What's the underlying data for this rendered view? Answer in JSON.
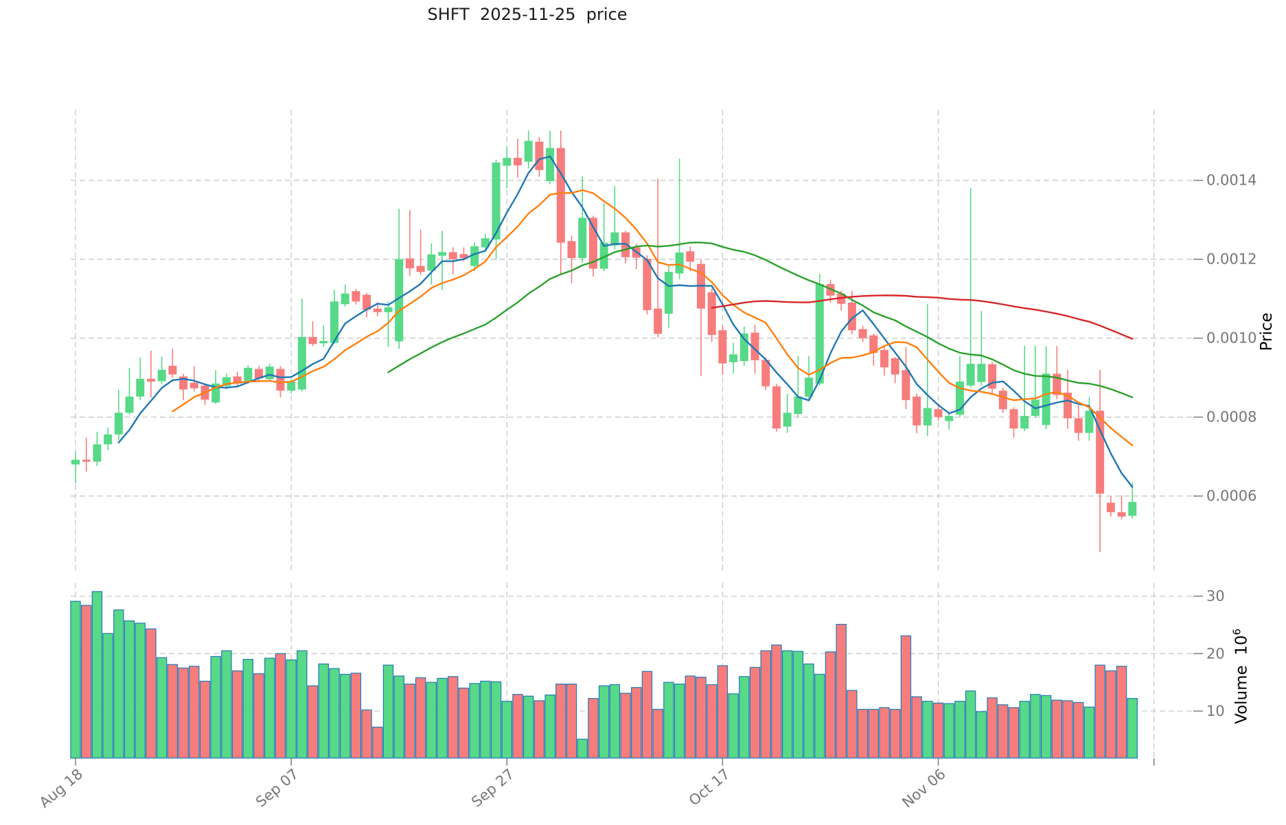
{
  "title": "SHFT  2025-11-25  price",
  "right_axis": {
    "price_label": "Price",
    "volume_label": "Volume",
    "volume_unit_base": "10",
    "volume_unit_exp": "6"
  },
  "chart_data": {
    "type": "candlestick",
    "title": "SHFT  2025-11-25  price",
    "x_tick_labels": [
      "Aug 18",
      "Sep 07",
      "Sep 27",
      "Oct 17",
      "Nov 06"
    ],
    "x_tick_candle_indices": [
      0,
      20,
      40,
      60,
      80
    ],
    "x_gridline_indices": [
      0,
      20,
      40,
      60,
      80,
      100
    ],
    "price_axis_ticks": [
      {
        "label": "0.0006",
        "value": 0.0006
      },
      {
        "label": "0.0008",
        "value": 0.0008
      },
      {
        "label": "0.0010",
        "value": 0.001
      },
      {
        "label": "0.0012",
        "value": 0.0012
      },
      {
        "label": "0.0014",
        "value": 0.0014
      }
    ],
    "volume_axis_ticks": [
      {
        "label": "10",
        "value": 10
      },
      {
        "label": "20",
        "value": 20
      },
      {
        "label": "30",
        "value": 30
      }
    ],
    "price_ylim": [
      0.000405,
      0.001579
    ],
    "volume_ylim_millions": [
      1.75,
      32.3
    ],
    "grid": true,
    "legend_position": "none",
    "ohlc": [
      [
        0.00068,
        0.000712,
        0.000632,
        0.000692
      ],
      [
        0.000692,
        0.000748,
        0.000662,
        0.000687
      ],
      [
        0.000687,
        0.000763,
        0.000676,
        0.000731
      ],
      [
        0.000731,
        0.000774,
        0.000716,
        0.000756
      ],
      [
        0.000756,
        0.000869,
        0.000742,
        0.000811
      ],
      [
        0.000811,
        0.000925,
        0.000806,
        0.000852
      ],
      [
        0.000852,
        0.000951,
        0.000843,
        0.000897
      ],
      [
        0.000897,
        0.000968,
        0.000849,
        0.00089
      ],
      [
        0.000891,
        0.000953,
        0.000884,
        0.00092
      ],
      [
        0.00093,
        0.000974,
        0.0009,
        0.000908
      ],
      [
        0.000903,
        0.00091,
        0.000843,
        0.00087
      ],
      [
        0.000887,
        0.000929,
        0.000865,
        0.000873
      ],
      [
        0.00088,
        0.000885,
        0.000831,
        0.000844
      ],
      [
        0.000837,
        0.000919,
        0.000833,
        0.000885
      ],
      [
        0.000879,
        0.00091,
        0.00087,
        0.000901
      ],
      [
        0.000903,
        0.000915,
        0.000877,
        0.000885
      ],
      [
        0.000892,
        0.000932,
        0.000885,
        0.000925
      ],
      [
        0.000922,
        0.00093,
        0.00089,
        0.000898
      ],
      [
        0.000896,
        0.000935,
        0.00089,
        0.000928
      ],
      [
        0.000922,
        0.00093,
        0.00085,
        0.000867
      ],
      [
        0.000867,
        0.000895,
        0.00086,
        0.00089
      ],
      [
        0.00087,
        0.0011,
        0.000865,
        0.001003
      ],
      [
        0.001003,
        0.001043,
        0.00098,
        0.000985
      ],
      [
        0.000987,
        0.001032,
        0.000978,
        0.000993
      ],
      [
        0.000988,
        0.001123,
        0.000985,
        0.001093
      ],
      [
        0.001086,
        0.001136,
        0.00108,
        0.001113
      ],
      [
        0.001119,
        0.001125,
        0.001085,
        0.001093
      ],
      [
        0.00111,
        0.001115,
        0.001053,
        0.001072
      ],
      [
        0.001075,
        0.00109,
        0.001055,
        0.001066
      ],
      [
        0.001066,
        0.001093,
        0.000978,
        0.001078
      ],
      [
        0.000992,
        0.001328,
        0.000973,
        0.0012
      ],
      [
        0.001202,
        0.001325,
        0.001157,
        0.001177
      ],
      [
        0.001183,
        0.001275,
        0.00116,
        0.001168
      ],
      [
        0.001171,
        0.00124,
        0.001136,
        0.001212
      ],
      [
        0.001209,
        0.001272,
        0.001122,
        0.001218
      ],
      [
        0.001218,
        0.00123,
        0.001162,
        0.0012
      ],
      [
        0.001213,
        0.00123,
        0.001195,
        0.001203
      ],
      [
        0.001183,
        0.001243,
        0.00117,
        0.001233
      ],
      [
        0.00123,
        0.001265,
        0.001218,
        0.001253
      ],
      [
        0.00125,
        0.001452,
        0.0012,
        0.001445
      ],
      [
        0.001437,
        0.001485,
        0.00138,
        0.001457
      ],
      [
        0.001457,
        0.001505,
        0.001407,
        0.001438
      ],
      [
        0.001447,
        0.001526,
        0.00143,
        0.0015
      ],
      [
        0.001498,
        0.00151,
        0.001409,
        0.001426
      ],
      [
        0.001398,
        0.001525,
        0.00139,
        0.001482
      ],
      [
        0.001482,
        0.001526,
        0.001163,
        0.001242
      ],
      [
        0.001246,
        0.00126,
        0.001139,
        0.001203
      ],
      [
        0.001203,
        0.00141,
        0.00119,
        0.001305
      ],
      [
        0.001305,
        0.00131,
        0.001156,
        0.001176
      ],
      [
        0.001176,
        0.001342,
        0.00117,
        0.001242
      ],
      [
        0.001235,
        0.001385,
        0.001225,
        0.001268
      ],
      [
        0.001268,
        0.001272,
        0.00119,
        0.001205
      ],
      [
        0.00123,
        0.00124,
        0.001175,
        0.001204
      ],
      [
        0.001201,
        0.00121,
        0.00106,
        0.001071
      ],
      [
        0.001075,
        0.001405,
        0.001002,
        0.001011
      ],
      [
        0.001062,
        0.001185,
        0.001026,
        0.001168
      ],
      [
        0.001164,
        0.001455,
        0.00115,
        0.001217
      ],
      [
        0.00122,
        0.001232,
        0.00117,
        0.001194
      ],
      [
        0.001188,
        0.0012,
        0.000904,
        0.001075
      ],
      [
        0.001116,
        0.001125,
        0.00099,
        0.001008
      ],
      [
        0.00102,
        0.001032,
        0.000907,
        0.000936
      ],
      [
        0.000939,
        0.000988,
        0.00091,
        0.000959
      ],
      [
        0.000942,
        0.00103,
        0.00093,
        0.001012
      ],
      [
        0.001014,
        0.001034,
        0.00091,
        0.000944
      ],
      [
        0.000945,
        0.000952,
        0.000868,
        0.000878
      ],
      [
        0.000878,
        0.000884,
        0.000763,
        0.000771
      ],
      [
        0.000776,
        0.000859,
        0.00076,
        0.000811
      ],
      [
        0.000808,
        0.000955,
        0.0008,
        0.000852
      ],
      [
        0.000852,
        0.000955,
        0.000845,
        0.0009
      ],
      [
        0.000885,
        0.001163,
        0.00088,
        0.001137
      ],
      [
        0.001137,
        0.001148,
        0.00109,
        0.001108
      ],
      [
        0.001113,
        0.00112,
        0.00107,
        0.001087
      ],
      [
        0.00109,
        0.00112,
        0.00101,
        0.00102
      ],
      [
        0.001023,
        0.001032,
        0.00099,
        0.001
      ],
      [
        0.001007,
        0.001012,
        0.00093,
        0.000963
      ],
      [
        0.00097,
        0.00098,
        0.000905,
        0.000926
      ],
      [
        0.000949,
        0.000952,
        0.000886,
        0.000908
      ],
      [
        0.000919,
        0.000977,
        0.00082,
        0.000843
      ],
      [
        0.000852,
        0.00086,
        0.000759,
        0.000779
      ],
      [
        0.000779,
        0.001086,
        0.000752,
        0.000823
      ],
      [
        0.00082,
        0.000835,
        0.00079,
        0.0008
      ],
      [
        0.00079,
        0.00081,
        0.000768,
        0.000803
      ],
      [
        0.000806,
        0.000955,
        0.0008,
        0.00089
      ],
      [
        0.00088,
        0.00138,
        0.000875,
        0.000935
      ],
      [
        0.000889,
        0.001069,
        0.00088,
        0.000935
      ],
      [
        0.000934,
        0.00094,
        0.00086,
        0.000872
      ],
      [
        0.000867,
        0.000875,
        0.00081,
        0.00082
      ],
      [
        0.00082,
        0.000825,
        0.000748,
        0.000771
      ],
      [
        0.000771,
        0.00098,
        0.000765,
        0.000803
      ],
      [
        0.000803,
        0.000981,
        0.000798,
        0.000844
      ],
      [
        0.00078,
        0.00098,
        0.00077,
        0.00091
      ],
      [
        0.00091,
        0.00098,
        0.000845,
        0.000856
      ],
      [
        0.000862,
        0.00092,
        0.00077,
        0.000797
      ],
      [
        0.000797,
        0.00083,
        0.00074,
        0.00076
      ],
      [
        0.00076,
        0.00085,
        0.00074,
        0.000816
      ],
      [
        0.000816,
        0.00092,
        0.000458,
        0.000606
      ],
      [
        0.000583,
        0.0006,
        0.000548,
        0.000559
      ],
      [
        0.000559,
        0.000602,
        0.000541,
        0.000548
      ],
      [
        0.00055,
        0.000634,
        0.000543,
        0.000585
      ]
    ],
    "volumes_millions": [
      29.1,
      28.4,
      30.8,
      23.5,
      27.6,
      25.7,
      25.3,
      24.3,
      19.3,
      18.1,
      17.5,
      17.8,
      15.2,
      19.5,
      20.5,
      17.0,
      19.0,
      16.5,
      19.2,
      20.0,
      18.9,
      20.5,
      14.4,
      18.2,
      17.4,
      16.4,
      16.6,
      10.2,
      7.2,
      18.0,
      16.1,
      14.7,
      15.8,
      15.0,
      15.7,
      16.0,
      14.0,
      14.8,
      15.2,
      15.1,
      11.7,
      12.9,
      12.6,
      11.8,
      12.8,
      14.7,
      14.7,
      5.1,
      12.2,
      14.4,
      14.6,
      13.1,
      14.1,
      16.9,
      10.3,
      15.0,
      14.7,
      16.1,
      15.9,
      14.6,
      17.9,
      13.0,
      16.0,
      17.6,
      20.5,
      21.5,
      20.5,
      20.4,
      18.2,
      16.4,
      20.3,
      25.1,
      13.6,
      10.3,
      10.3,
      10.6,
      10.3,
      23.1,
      12.5,
      11.7,
      11.4,
      11.3,
      11.7,
      13.5,
      9.9,
      12.3,
      11.1,
      10.6,
      11.7,
      12.9,
      12.7,
      11.9,
      11.8,
      11.5,
      10.7,
      18.0,
      17.0,
      17.8,
      12.2
    ],
    "moving_averages": [
      {
        "name": "mav5",
        "window": 5,
        "color": "#1f77b4"
      },
      {
        "name": "mav10",
        "window": 10,
        "color": "#ff7f0e"
      },
      {
        "name": "mav30",
        "window": 30,
        "color": "#2ca02c"
      },
      {
        "name": "mav60",
        "window": 60,
        "color": "#d62728"
      }
    ],
    "colors": {
      "up": "#57d988",
      "down": "#f77d7d",
      "volume_edge": "#2379b5",
      "grid": "#c9c9c9",
      "tick_text": "#767676",
      "title_text": "#1a1a1a"
    }
  }
}
